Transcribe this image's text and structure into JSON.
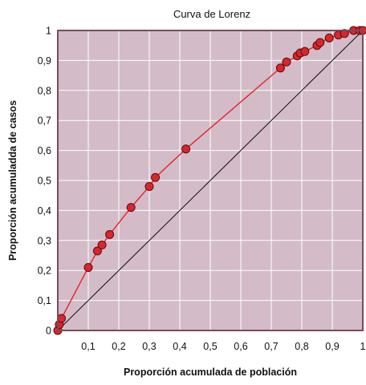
{
  "chart_data": {
    "type": "scatter",
    "title": "Curva de Lorenz",
    "xlabel": "Proporción acumulada de población",
    "ylabel": "Proporción acumuladda de casos",
    "xlim": [
      0,
      1
    ],
    "ylim": [
      0,
      1
    ],
    "x_tick_labels": [
      "0,1",
      "0,2",
      "0,3",
      "0,4",
      "0,5",
      "0,6",
      "0,7",
      "0,8",
      "0,9",
      "1"
    ],
    "y_tick_labels": [
      "0",
      "0,1",
      "0,2",
      "0,3",
      "0,4",
      "0,5",
      "0,6",
      "0,7",
      "0,8",
      "0,9",
      "1"
    ],
    "grid": true,
    "legend": "none",
    "series": [
      {
        "points": [
          {
            "x": 0.0,
            "y": 0.0
          },
          {
            "x": 0.005,
            "y": 0.02
          },
          {
            "x": 0.012,
            "y": 0.04
          },
          {
            "x": 0.1,
            "y": 0.21
          },
          {
            "x": 0.13,
            "y": 0.265
          },
          {
            "x": 0.145,
            "y": 0.285
          },
          {
            "x": 0.17,
            "y": 0.32
          },
          {
            "x": 0.24,
            "y": 0.41
          },
          {
            "x": 0.3,
            "y": 0.48
          },
          {
            "x": 0.32,
            "y": 0.51
          },
          {
            "x": 0.42,
            "y": 0.605
          },
          {
            "x": 0.73,
            "y": 0.875
          },
          {
            "x": 0.75,
            "y": 0.895
          },
          {
            "x": 0.785,
            "y": 0.915
          },
          {
            "x": 0.795,
            "y": 0.925
          },
          {
            "x": 0.81,
            "y": 0.93
          },
          {
            "x": 0.85,
            "y": 0.95
          },
          {
            "x": 0.86,
            "y": 0.96
          },
          {
            "x": 0.89,
            "y": 0.975
          },
          {
            "x": 0.92,
            "y": 0.985
          },
          {
            "x": 0.94,
            "y": 0.99
          },
          {
            "x": 0.97,
            "y": 1.0
          },
          {
            "x": 0.99,
            "y": 1.0
          },
          {
            "x": 1.0,
            "y": 1.0
          }
        ]
      }
    ],
    "reference_line": {
      "from": [
        0,
        0
      ],
      "to": [
        1,
        1
      ]
    },
    "colors": {
      "plot_background": "#d3bcc7",
      "frame": "#7a4a5e",
      "curve": "#e8202a",
      "point_fill": "#d9262c",
      "point_stroke": "#5a0c10",
      "reference_line": "#111111"
    }
  }
}
